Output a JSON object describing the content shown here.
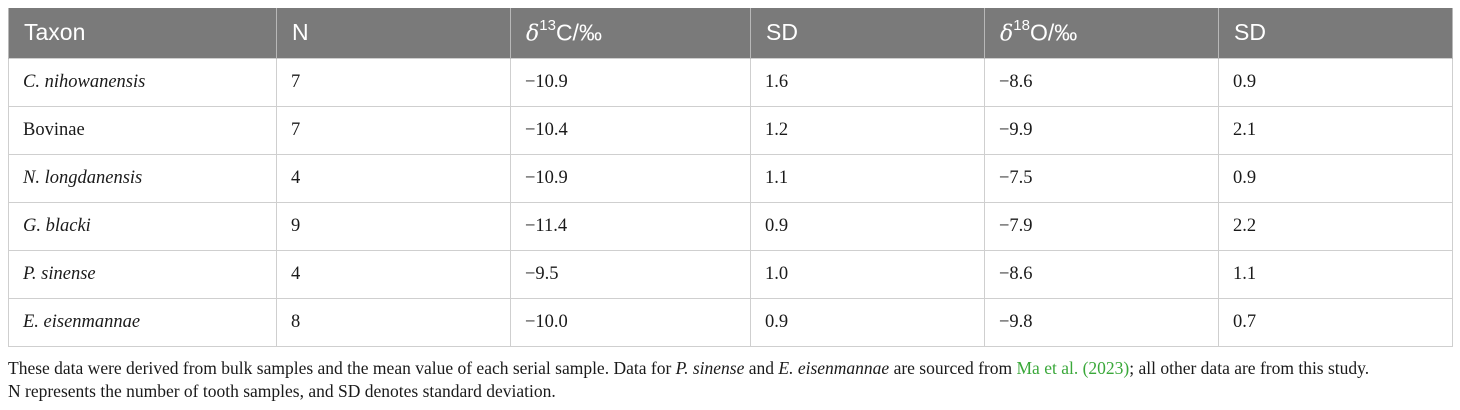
{
  "table": {
    "headers": {
      "taxon": "Taxon",
      "n": "N",
      "d13c_symbol": "δ",
      "d13c_superscript": "13",
      "d13c_unit": "C/‰",
      "sd1": "SD",
      "d18o_symbol": "δ",
      "d18o_superscript": "18",
      "d18o_unit": "O/‰",
      "sd2": "SD"
    },
    "rows": [
      {
        "taxon": "C. nihowanensis",
        "italic": true,
        "n": "7",
        "d13c": "−10.9",
        "sd1": "1.6",
        "d18o": "−8.6",
        "sd2": "0.9"
      },
      {
        "taxon": "Bovinae",
        "italic": false,
        "n": "7",
        "d13c": "−10.4",
        "sd1": "1.2",
        "d18o": "−9.9",
        "sd2": "2.1"
      },
      {
        "taxon": "N. longdanensis",
        "italic": true,
        "n": "4",
        "d13c": "−10.9",
        "sd1": "1.1",
        "d18o": "−7.5",
        "sd2": "0.9"
      },
      {
        "taxon": "G. blacki",
        "italic": true,
        "n": "9",
        "d13c": "−11.4",
        "sd1": "0.9",
        "d18o": "−7.9",
        "sd2": "2.2"
      },
      {
        "taxon": "P. sinense",
        "italic": true,
        "n": "4",
        "d13c": "−9.5",
        "sd1": "1.0",
        "d18o": "−8.6",
        "sd2": "1.1"
      },
      {
        "taxon": "E. eisenmannae",
        "italic": true,
        "n": "8",
        "d13c": "−10.0",
        "sd1": "0.9",
        "d18o": "−9.8",
        "sd2": "0.7"
      }
    ]
  },
  "footnote": {
    "part1": "These data were derived from bulk samples and the mean value of each serial sample. Data for ",
    "taxon1": "P. sinense",
    "part2": " and ",
    "taxon2": "E. eisenmannae",
    "part3": " are sourced from ",
    "citation": "Ma et al. (2023)",
    "part4": "; all other data are from this study.",
    "line2": "N represents the number of tooth samples, and SD denotes standard deviation."
  },
  "colors": {
    "header_bg": "#7a7a7a",
    "header_text": "#ffffff",
    "link": "#3aa83a",
    "grid": "#cfcfcf"
  }
}
